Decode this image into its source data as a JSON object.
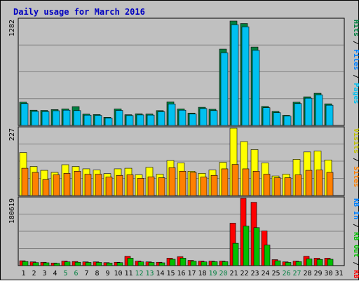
{
  "title": "Daily usage for March 2016",
  "colors": {
    "title": "#0000c0",
    "pages": "#00c0f0",
    "files": "#0080ff",
    "hits": "#008040",
    "visits": "#ffff00",
    "sites": "#ff8000",
    "kb_in": "#0080ff",
    "kb_out": "#00c000",
    "kb_f": "#ff0000",
    "weekend_day": "#008040",
    "plot_bg": "#c0c0c0",
    "gridline": "#808080"
  },
  "legend": {
    "panel1": [
      {
        "label": "Hits",
        "color": "#008040"
      },
      {
        "label": "Files",
        "color": "#0080ff"
      },
      {
        "label": "Pages",
        "color": "#00c0f0"
      }
    ],
    "panel2": [
      {
        "label": "Visits",
        "color": "#c0c000"
      },
      {
        "label": "Sites",
        "color": "#ff8000"
      }
    ],
    "panel3": [
      {
        "label": "KB In",
        "color": "#0080ff"
      },
      {
        "label": "KB Out",
        "color": "#00c000"
      },
      {
        "label": "KB F",
        "color": "#ff0000"
      }
    ]
  },
  "chart_data": {
    "type": "bar",
    "title": "Daily usage for March 2016",
    "categories": [
      "1",
      "2",
      "3",
      "4",
      "5",
      "6",
      "7",
      "8",
      "9",
      "10",
      "11",
      "12",
      "13",
      "14",
      "15",
      "16",
      "17",
      "18",
      "19",
      "20",
      "21",
      "22",
      "23",
      "24",
      "25",
      "26",
      "27",
      "28",
      "29",
      "30",
      "31"
    ],
    "weekend_days": [
      5,
      6,
      12,
      13,
      19,
      20,
      26,
      27
    ],
    "panels": [
      {
        "name": "hits_files_pages",
        "ymax": 1282,
        "ymax_label": "1282",
        "series": [
          {
            "name": "Hits",
            "values": [
              282,
              185,
              182,
              192,
              200,
              228,
              137,
              132,
              99,
              200,
              130,
              140,
              138,
              180,
              286,
              200,
              150,
              220,
              196,
              925,
              1265,
              1235,
              950,
              230,
              170,
              123,
              282,
              347,
              390,
              262,
              0
            ]
          },
          {
            "name": "Files",
            "values": [
              272,
              175,
              172,
              182,
              190,
              210,
              130,
              126,
              93,
              190,
              124,
              132,
              130,
              172,
              270,
              190,
              142,
              210,
              186,
              900,
              1240,
              1210,
              930,
              220,
              160,
              117,
              270,
              335,
              375,
              250,
              0
            ]
          },
          {
            "name": "Pages",
            "values": [
              265,
              170,
              168,
              178,
              185,
              180,
              125,
              122,
              90,
              182,
              120,
              128,
              126,
              166,
              260,
              185,
              138,
              205,
              180,
              880,
              1220,
              1195,
              910,
              215,
              155,
              113,
              265,
              330,
              370,
              245,
              0
            ]
          }
        ]
      },
      {
        "name": "visits_sites",
        "ymax": 227,
        "ymax_label": "227",
        "series": [
          {
            "name": "Visits",
            "values": [
              145,
              98,
              85,
              78,
              104,
              98,
              90,
              86,
              74,
              90,
              92,
              70,
              95,
              72,
              118,
              110,
              82,
              75,
              86,
              112,
              227,
              182,
              155,
              110,
              66,
              72,
              122,
              147,
              150,
              120,
              0
            ]
          },
          {
            "name": "Sites",
            "values": [
              92,
              78,
              54,
              70,
              75,
              82,
              72,
              72,
              62,
              68,
              70,
              58,
              63,
              60,
              94,
              82,
              78,
              62,
              68,
              90,
              105,
              90,
              82,
              72,
              60,
              60,
              70,
              85,
              86,
              78,
              0
            ]
          }
        ]
      },
      {
        "name": "kbin_kbout_kbf",
        "ymax": 180619,
        "ymax_label": "180619",
        "series": [
          {
            "name": "KB F",
            "values": [
              13000,
              10000,
              9000,
              7000,
              12000,
              11000,
              10000,
              10000,
              8000,
              9000,
              25000,
              12000,
              10000,
              9000,
              20000,
              24000,
              14000,
              12000,
              12000,
              12000,
              114000,
              180619,
              170000,
              93000,
              16000,
              10000,
              12000,
              25000,
              20000,
              20000,
              0
            ]
          },
          {
            "name": "KB Out",
            "values": [
              11000,
              8000,
              7500,
              6000,
              10000,
              9000,
              8500,
              8500,
              7000,
              8000,
              20000,
              10000,
              8500,
              7500,
              17000,
              20000,
              12000,
              10000,
              10500,
              10500,
              60000,
              106000,
              102000,
              55000,
              13000,
              8500,
              10500,
              18000,
              16500,
              17000,
              0
            ]
          }
        ]
      }
    ]
  }
}
